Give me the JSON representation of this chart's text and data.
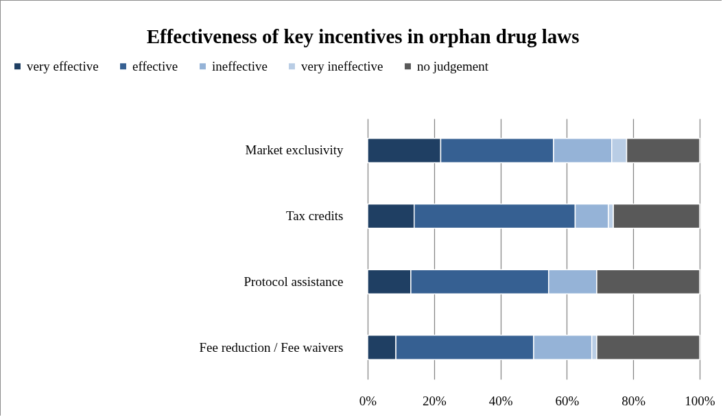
{
  "chart_data": {
    "type": "bar",
    "orientation": "horizontal",
    "stacked": true,
    "title": "Effectiveness of key incentives in orphan drug laws",
    "categories": [
      "Market exclusivity",
      "Tax credits",
      "Protocol assistance",
      "Fee reduction / Fee waivers"
    ],
    "series": [
      {
        "name": "very effective",
        "color": "#1f3f63",
        "values": [
          22,
          14,
          13,
          8.5
        ]
      },
      {
        "name": "effective",
        "color": "#366092",
        "values": [
          34,
          48.5,
          41.5,
          41.5
        ]
      },
      {
        "name": "ineffective",
        "color": "#95b3d7",
        "values": [
          17.5,
          10,
          14.5,
          17.5
        ]
      },
      {
        "name": "very ineffective",
        "color": "#b9cde5",
        "values": [
          4.5,
          1.5,
          0,
          1.5
        ]
      },
      {
        "name": "no judgement",
        "color": "#595959",
        "values": [
          22,
          26,
          31,
          31
        ]
      }
    ],
    "xlim": [
      0,
      100
    ],
    "xticks": [
      {
        "value": 0,
        "label": "0%"
      },
      {
        "value": 20,
        "label": "20%"
      },
      {
        "value": 40,
        "label": "40%"
      },
      {
        "value": 60,
        "label": "60%"
      },
      {
        "value": 80,
        "label": "80%"
      },
      {
        "value": 100,
        "label": "100%"
      }
    ],
    "grid": "x",
    "legend": "top"
  }
}
